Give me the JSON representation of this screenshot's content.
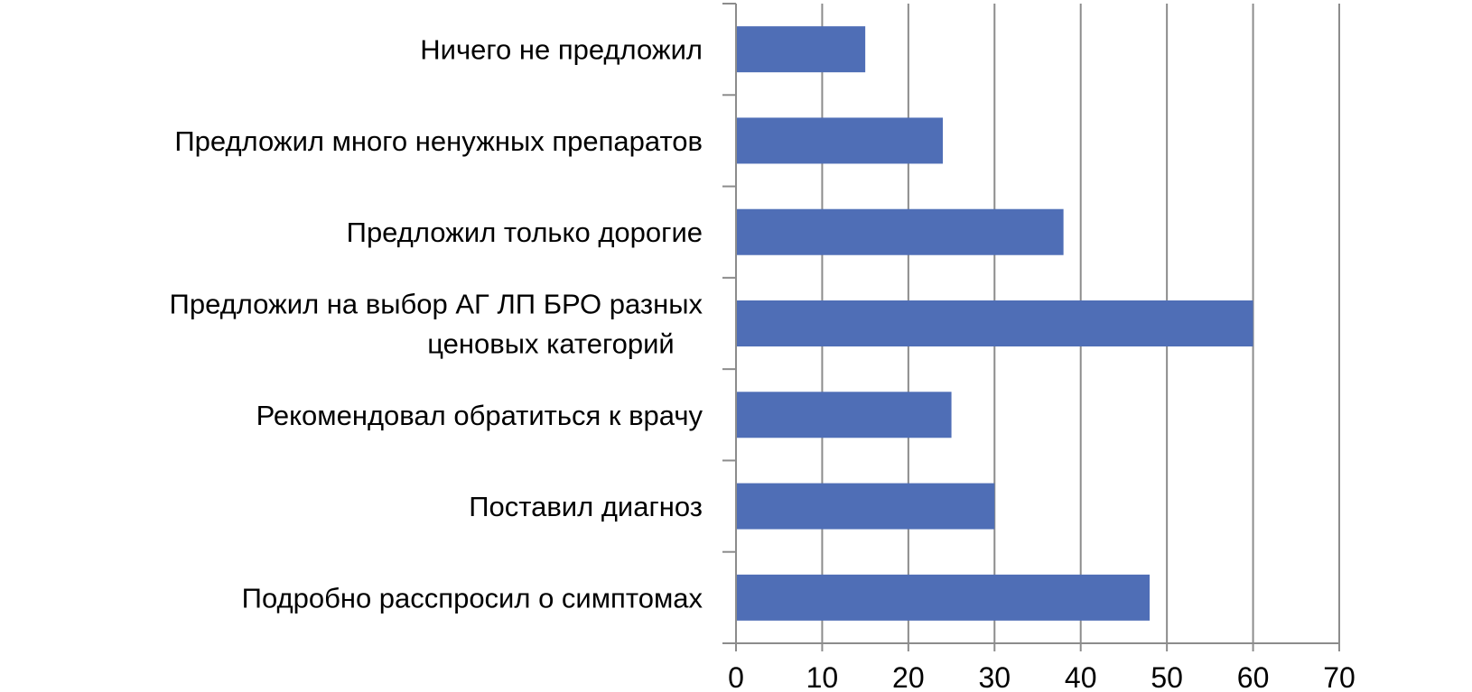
{
  "chart_data": {
    "type": "bar",
    "orientation": "horizontal",
    "categories": [
      "Ничего не предложил",
      "Предложил много ненужных препаратов",
      "Предложил только дорогие",
      "Предложил на выбор АГ ЛП БРО разных ценовых категорий",
      "Рекомендовал обратиться к врачу",
      "Поставил диагноз",
      "Подробно расспросил о симптомах"
    ],
    "category_lines": [
      [
        "Ничего не предложил"
      ],
      [
        "Предложил много ненужных препаратов"
      ],
      [
        "Предложил только дорогие"
      ],
      [
        "Предложил на выбор АГ ЛП БРО разных",
        "ценовых категорий"
      ],
      [
        "Рекомендовал обратиться к врачу"
      ],
      [
        "Поставил диагноз"
      ],
      [
        "Подробно расспросил о симптомах"
      ]
    ],
    "values": [
      15,
      24,
      38,
      60,
      25,
      30,
      48
    ],
    "xlim": [
      0,
      70
    ],
    "xticks": [
      "0",
      "10",
      "20",
      "30",
      "40",
      "50",
      "60",
      "70"
    ],
    "grid": "vertical",
    "bar_color": "#4F6EB6",
    "grid_color": "#8C8C8C",
    "title": "",
    "xlabel": "",
    "ylabel": ""
  }
}
